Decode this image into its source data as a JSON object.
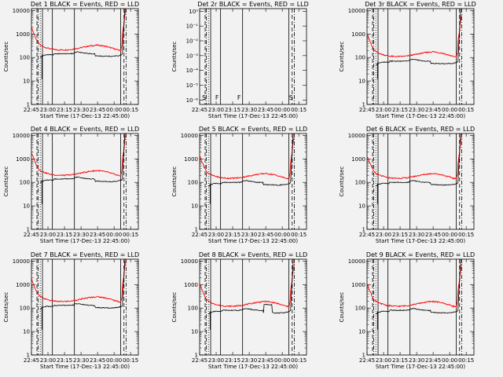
{
  "page": {
    "background": "#f2f2f2"
  },
  "colors": {
    "events": "#000000",
    "lld": "#ff0000",
    "axes": "#000000"
  },
  "common": {
    "xlabel": "Start Time (17-Dec-13 22:45:00)",
    "ylabel": "Counts/sec",
    "x_ticks": [
      "22:45",
      "23:00",
      "23:15",
      "23:30",
      "23:45",
      "00:00",
      "00:15"
    ],
    "x_tick_minutes": [
      0,
      15,
      30,
      45,
      60,
      75,
      90
    ],
    "xlim_minutes": [
      0,
      97
    ],
    "y_ticks": [
      "1",
      "10",
      "100",
      "1000",
      "10000"
    ],
    "y_tick_values": [
      1,
      10,
      100,
      1000,
      10000
    ],
    "ylim": [
      1,
      12000
    ],
    "y_scale": "log"
  },
  "panels": [
    {
      "title": "Det 1 BLACK = Events, RED = LLD",
      "kind": "normal",
      "ev": 145,
      "lld": 210,
      "bump": 0
    },
    {
      "title": "Det 2r BLACK = Events, RED = LLD",
      "kind": "empty",
      "y_ticks": [
        "10⁰",
        "10⁻¹",
        "10⁻²",
        "10⁻³",
        "10⁻⁴",
        "10⁻⁵",
        "10⁻⁶"
      ],
      "y_tick_exponents": [
        0,
        -1,
        -2,
        -3,
        -4,
        -5,
        -6
      ],
      "ylim": [
        5e-07,
        1.5
      ],
      "markers": [
        "S",
        "F",
        "F",
        "S"
      ]
    },
    {
      "title": "Det 3r BLACK = Events, RED = LLD",
      "kind": "normal",
      "ev": 70,
      "lld": 110,
      "bump": 0
    },
    {
      "title": "Det 4 BLACK = Events, RED = LLD",
      "kind": "normal",
      "ev": 140,
      "lld": 200,
      "bump": 0
    },
    {
      "title": "Det 5 BLACK = Events, RED = LLD",
      "kind": "normal",
      "ev": 100,
      "lld": 150,
      "bump": 0
    },
    {
      "title": "Det 6 BLACK = Events, RED = LLD",
      "kind": "normal",
      "ev": 100,
      "lld": 150,
      "bump": 0
    },
    {
      "title": "Det 7 BLACK = Events, RED = LLD",
      "kind": "normal",
      "ev": 130,
      "lld": 190,
      "bump": 0
    },
    {
      "title": "Det 8 BLACK = Events, RED = LLD",
      "kind": "normal",
      "ev": 80,
      "lld": 120,
      "bump": 1
    },
    {
      "title": "Det 9 BLACK = Events, RED = LLD",
      "kind": "normal",
      "ev": 80,
      "lld": 120,
      "bump": 0
    }
  ],
  "chart_data": {
    "type": "line",
    "x_units": "minutes after 17-Dec-13 22:45:00",
    "y_scale": "log",
    "shared_events_curve_minutes": [
      8,
      10,
      14,
      20,
      28,
      36,
      42,
      50,
      58,
      64,
      72,
      78,
      82
    ],
    "shared_events_curve_factor": [
      0.75,
      0.9,
      1.0,
      1.0,
      1.0,
      1.0,
      1.1,
      0.95,
      0.9,
      0.88,
      0.85,
      0.9,
      1.0
    ],
    "shared_lld_curve_minutes": [
      0,
      2,
      4,
      6,
      8,
      12,
      18,
      24,
      30,
      36,
      44,
      52,
      60,
      68,
      74,
      79,
      81,
      82,
      84,
      86
    ],
    "shared_lld_curve_factor": [
      9.0,
      5.2,
      3.0,
      2.0,
      1.6,
      1.3,
      1.08,
      1.0,
      1.0,
      1.04,
      1.22,
      1.45,
      1.6,
      1.4,
      1.15,
      0.98,
      0.95,
      1.5,
      12,
      60
    ],
    "solid_vlines_minutes": [
      10,
      19,
      39,
      81
    ],
    "dashed_vlines_minutes": [
      5,
      84
    ],
    "dashdot_vlines_minutes": [
      6,
      86
    ],
    "dotted_vlines_minutes": [
      8
    ]
  }
}
